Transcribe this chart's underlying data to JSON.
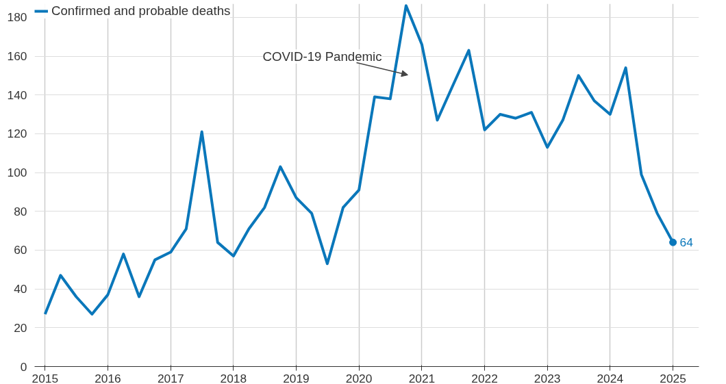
{
  "chart_data": {
    "type": "line",
    "x": [
      "2015-01",
      "2015-04",
      "2015-07",
      "2015-10",
      "2016-01",
      "2016-04",
      "2016-07",
      "2016-10",
      "2017-01",
      "2017-04",
      "2017-07",
      "2017-10",
      "2018-01",
      "2018-04",
      "2018-07",
      "2018-10",
      "2019-01",
      "2019-04",
      "2019-07",
      "2019-10",
      "2020-01",
      "2020-04",
      "2020-07",
      "2020-10",
      "2021-01",
      "2021-04",
      "2021-07",
      "2021-10",
      "2022-01",
      "2022-04",
      "2022-07",
      "2022-10",
      "2023-01",
      "2023-04",
      "2023-07",
      "2023-10",
      "2024-01",
      "2024-04",
      "2024-07",
      "2024-10",
      "2025-01"
    ],
    "series": [
      {
        "name": "Confirmed and probable deaths",
        "color": "#0a77ba",
        "values": [
          27,
          47,
          36,
          27,
          37,
          58,
          36,
          55,
          59,
          71,
          121,
          64,
          57,
          71,
          82,
          103,
          87,
          79,
          53,
          82,
          91,
          139,
          138,
          186,
          166,
          127,
          145,
          163,
          122,
          130,
          128,
          131,
          113,
          127,
          150,
          137,
          130,
          154,
          99,
          79,
          64
        ],
        "value_labels": [
          null,
          null,
          null,
          null,
          null,
          null,
          null,
          null,
          null,
          null,
          null,
          null,
          null,
          null,
          null,
          null,
          null,
          null,
          null,
          null,
          null,
          null,
          null,
          null,
          null,
          null,
          null,
          null,
          null,
          null,
          null,
          null,
          null,
          null,
          null,
          null,
          null,
          null,
          null,
          null,
          "64"
        ]
      }
    ],
    "xlim": [
      "2014-11",
      "2025-06"
    ],
    "xticks": [
      "2015",
      "2016",
      "2017",
      "2018",
      "2019",
      "2020",
      "2021",
      "2022",
      "2023",
      "2024",
      "2025"
    ],
    "ylim": [
      0,
      187
    ],
    "yticks": [
      0,
      20,
      40,
      60,
      80,
      100,
      120,
      140,
      160,
      180
    ],
    "annotations": [
      "COVID-19 Pandemic"
    ],
    "grid": true,
    "legend": "top left",
    "marker": "none",
    "line_style": "solid"
  }
}
